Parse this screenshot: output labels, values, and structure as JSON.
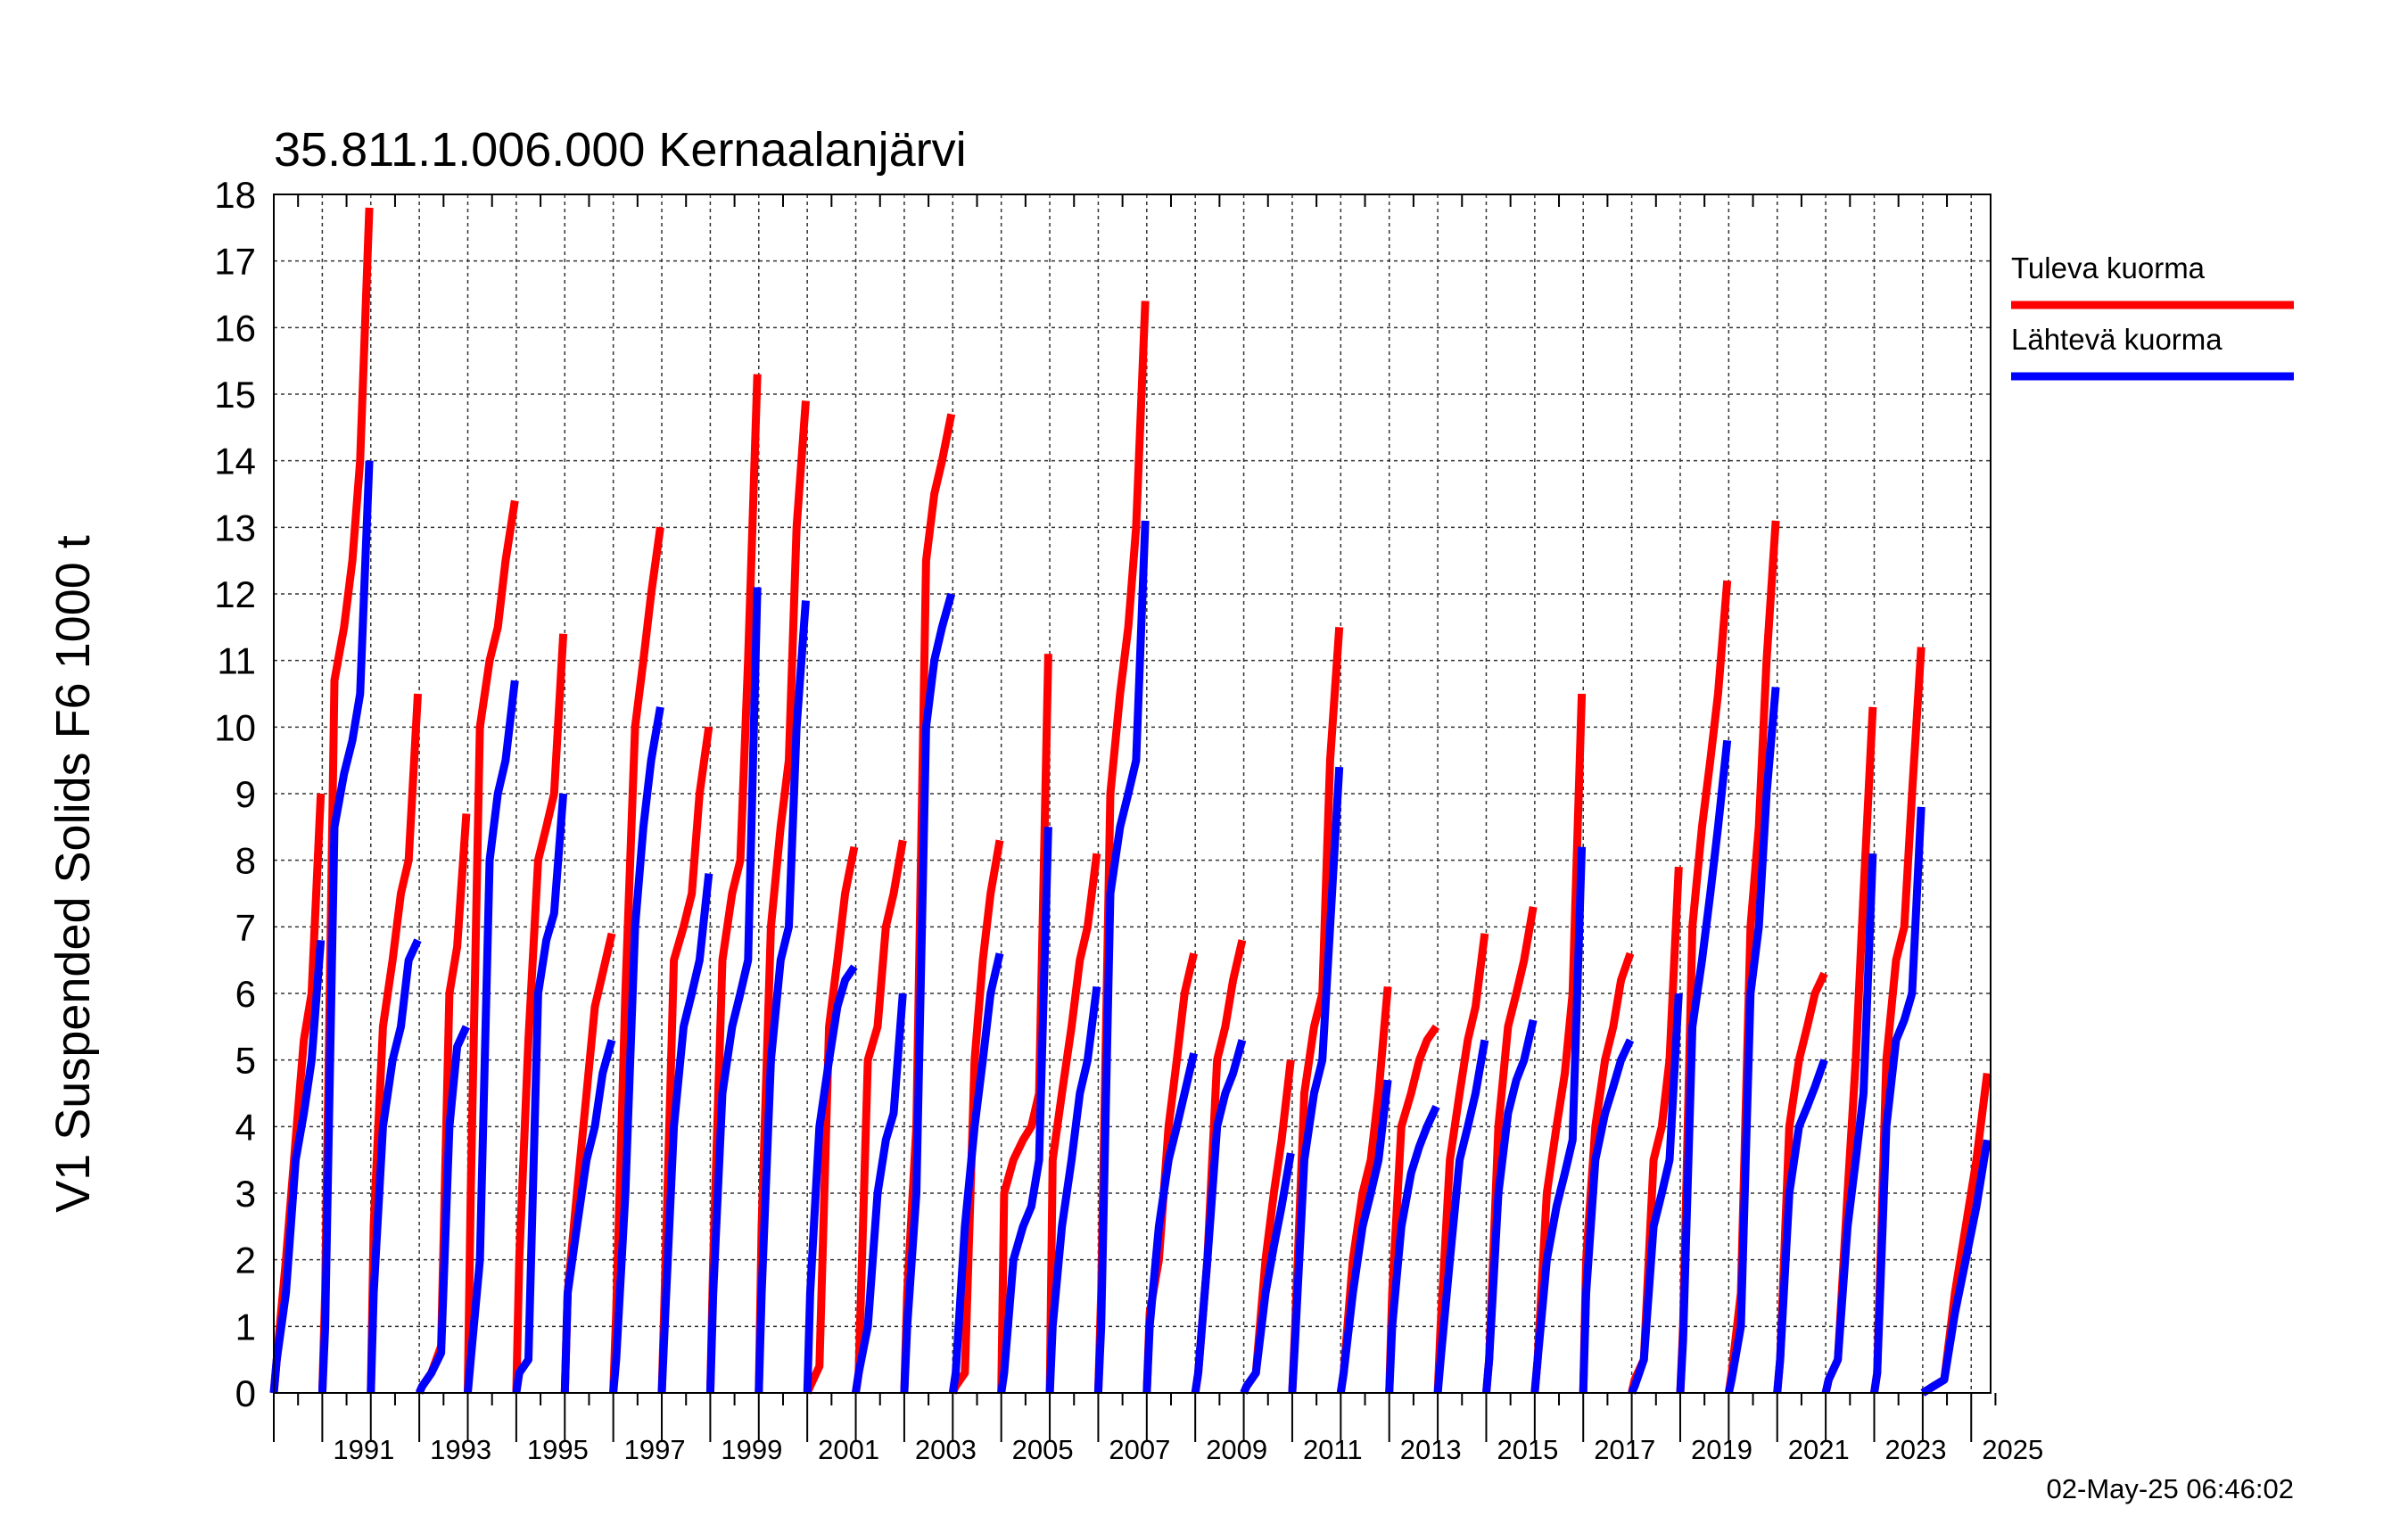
{
  "chart_data": {
    "type": "line",
    "title": "35.811.1.006.000 Kernaalanjärvi",
    "ylabel": "V1 Suspended Solids F6 1000 t",
    "xlabel": "",
    "xlim": [
      1990,
      2025.4
    ],
    "ylim": [
      0,
      18
    ],
    "yticks": [
      0,
      1,
      2,
      3,
      4,
      5,
      6,
      7,
      8,
      9,
      10,
      11,
      12,
      13,
      14,
      15,
      16,
      17,
      18
    ],
    "xtick_labels": [
      "1991",
      "1993",
      "1995",
      "1997",
      "1999",
      "2001",
      "2003",
      "2005",
      "2007",
      "2009",
      "2011",
      "2013",
      "2015",
      "2017",
      "2019",
      "2021",
      "2023",
      "2025"
    ],
    "timestamp": "02-May-25 06:46:02",
    "grid": true,
    "legend_position": "right",
    "series": [
      {
        "name": "Tuleva kuorma",
        "color": "#ff0000",
        "annual": [
          [
            0,
            0.5,
            2.0,
            3.8,
            5.3,
            6.0,
            9.0
          ],
          [
            0,
            1.5,
            10.7,
            11.5,
            12.5,
            14.0,
            17.8
          ],
          [
            0,
            2.5,
            5.5,
            6.5,
            7.5,
            8.0,
            10.5
          ],
          [
            0,
            0.1,
            0.3,
            0.7,
            6.0,
            6.7,
            8.7
          ],
          [
            0,
            3.0,
            10.0,
            11.0,
            11.5,
            12.5,
            13.4
          ],
          [
            0,
            2.0,
            5.3,
            8.0,
            8.5,
            9.0,
            11.4
          ],
          [
            0,
            1.5,
            3.0,
            4.5,
            5.8,
            6.3,
            6.9
          ],
          [
            0,
            1.2,
            6.0,
            10.0,
            11.0,
            12.0,
            13.0
          ],
          [
            0,
            1.5,
            6.5,
            7.0,
            7.5,
            9.0,
            10.0
          ],
          [
            0,
            2.0,
            6.5,
            7.5,
            8.0,
            11.0,
            15.3
          ],
          [
            0,
            2.5,
            7.0,
            8.5,
            9.5,
            13.0,
            14.9
          ],
          [
            0,
            0.1,
            0.4,
            5.5,
            6.5,
            7.5,
            8.2
          ],
          [
            0,
            0.3,
            5.0,
            5.5,
            7.0,
            7.5,
            8.3
          ],
          [
            0,
            1.5,
            4.0,
            12.5,
            13.5,
            14.0,
            14.7
          ],
          [
            0,
            0.1,
            0.3,
            5.0,
            6.5,
            7.5,
            8.3
          ],
          [
            0,
            3.0,
            3.5,
            3.8,
            4.0,
            4.5,
            11.1
          ],
          [
            0,
            3.5,
            4.5,
            5.5,
            6.5,
            7.0,
            8.1
          ],
          [
            0,
            1.5,
            9.0,
            10.5,
            11.5,
            13.0,
            16.4
          ],
          [
            0,
            1.2,
            2.0,
            4.0,
            5.0,
            6.0,
            6.6
          ],
          [
            0,
            0.3,
            2.0,
            5.0,
            5.5,
            6.2,
            6.8
          ],
          [
            0,
            0.1,
            0.3,
            2.0,
            3.0,
            3.8,
            5.0
          ],
          [
            0,
            1.0,
            4.5,
            5.5,
            6.0,
            9.5,
            11.5
          ],
          [
            0,
            0.3,
            2.0,
            3.0,
            3.5,
            4.5,
            6.1
          ],
          [
            0,
            1.5,
            4.0,
            4.5,
            5.0,
            5.3,
            5.5
          ],
          [
            0,
            1.0,
            3.5,
            4.5,
            5.3,
            5.8,
            6.9
          ],
          [
            0,
            0.5,
            4.0,
            5.5,
            6.0,
            6.5,
            7.3
          ],
          [
            0,
            0.5,
            3.0,
            4.0,
            4.8,
            6.0,
            10.5
          ],
          [
            0,
            2.0,
            4.0,
            5.0,
            5.5,
            6.2,
            6.6
          ],
          [
            0,
            0.2,
            0.5,
            3.5,
            4.0,
            5.0,
            7.9
          ],
          [
            0,
            1.0,
            7.0,
            8.5,
            9.5,
            10.5,
            12.2
          ],
          [
            0,
            0.3,
            1.5,
            7.0,
            8.5,
            11.0,
            13.1
          ],
          [
            0,
            0.5,
            4.0,
            5.0,
            5.5,
            6.0,
            6.3
          ],
          [
            0,
            0.2,
            0.5,
            3.0,
            5.0,
            7.5,
            10.3
          ],
          [
            0,
            0.3,
            5.0,
            6.5,
            7.0,
            9.0,
            11.2
          ],
          [
            0,
            0.1,
            0.2,
            1.5,
            2.5,
            3.5,
            4.8
          ]
        ]
      },
      {
        "name": "Lähtevä kuorma",
        "color": "#0000ff",
        "annual": [
          [
            0,
            0.5,
            1.5,
            3.5,
            4.2,
            5.0,
            6.8
          ],
          [
            0,
            1.0,
            8.5,
            9.3,
            9.8,
            10.5,
            14.0
          ],
          [
            0,
            1.5,
            4.0,
            5.0,
            5.5,
            6.5,
            6.8
          ],
          [
            0,
            0.1,
            0.3,
            0.6,
            4.0,
            5.2,
            5.5
          ],
          [
            0,
            0.5,
            2.0,
            8.0,
            9.0,
            9.5,
            10.7
          ],
          [
            0,
            0.3,
            0.5,
            6.0,
            6.8,
            7.2,
            9.0
          ],
          [
            0,
            1.5,
            2.5,
            3.5,
            4.0,
            4.8,
            5.3
          ],
          [
            0,
            0.5,
            3.0,
            7.0,
            8.5,
            9.5,
            10.3
          ],
          [
            0,
            1.0,
            4.0,
            5.5,
            6.0,
            6.5,
            7.8
          ],
          [
            0,
            1.5,
            4.5,
            5.5,
            6.0,
            6.5,
            12.1
          ],
          [
            0,
            1.5,
            5.0,
            6.5,
            7.0,
            10.0,
            11.9
          ],
          [
            0,
            1.5,
            4.0,
            5.0,
            5.8,
            6.2,
            6.4
          ],
          [
            0,
            0.3,
            1.0,
            3.0,
            3.8,
            4.2,
            6.0
          ],
          [
            0,
            1.0,
            3.0,
            10.0,
            11.0,
            11.5,
            12.0
          ],
          [
            0,
            0.3,
            2.5,
            4.0,
            5.0,
            6.0,
            6.6
          ],
          [
            0,
            0.3,
            2.0,
            2.5,
            2.8,
            3.5,
            8.5
          ],
          [
            0,
            1.0,
            2.5,
            3.5,
            4.5,
            5.0,
            6.1
          ],
          [
            0,
            1.0,
            7.5,
            8.5,
            9.0,
            9.5,
            13.1
          ],
          [
            0,
            1.0,
            2.5,
            3.5,
            4.0,
            4.5,
            5.1
          ],
          [
            0,
            0.3,
            2.0,
            4.0,
            4.5,
            4.8,
            5.3
          ],
          [
            0,
            0.1,
            0.3,
            1.5,
            2.2,
            2.8,
            3.6
          ],
          [
            0,
            0.8,
            3.5,
            4.5,
            5.0,
            7.0,
            9.4
          ],
          [
            0,
            0.3,
            1.5,
            2.5,
            3.0,
            3.5,
            4.7
          ],
          [
            0,
            1.0,
            2.5,
            3.3,
            3.7,
            4.0,
            4.3
          ],
          [
            0,
            0.5,
            2.0,
            3.5,
            4.0,
            4.5,
            5.3
          ],
          [
            0,
            0.5,
            3.0,
            4.2,
            4.7,
            5.0,
            5.6
          ],
          [
            0,
            0.5,
            2.0,
            2.8,
            3.3,
            3.8,
            8.2
          ],
          [
            0,
            1.5,
            3.5,
            4.2,
            4.6,
            5.0,
            5.3
          ],
          [
            0,
            0.1,
            0.5,
            2.5,
            3.0,
            3.5,
            6.0
          ],
          [
            0,
            0.8,
            5.5,
            6.5,
            7.5,
            8.5,
            9.8
          ],
          [
            0,
            0.2,
            1.0,
            6.0,
            7.0,
            9.0,
            10.6
          ],
          [
            0,
            0.5,
            3.0,
            4.0,
            4.3,
            4.6,
            5.0
          ],
          [
            0,
            0.2,
            0.5,
            2.5,
            3.5,
            4.5,
            8.1
          ],
          [
            0,
            0.3,
            4.0,
            5.3,
            5.6,
            6.0,
            8.8
          ],
          [
            0,
            0.1,
            0.2,
            1.2,
            2.0,
            2.8,
            3.8
          ]
        ]
      }
    ]
  }
}
